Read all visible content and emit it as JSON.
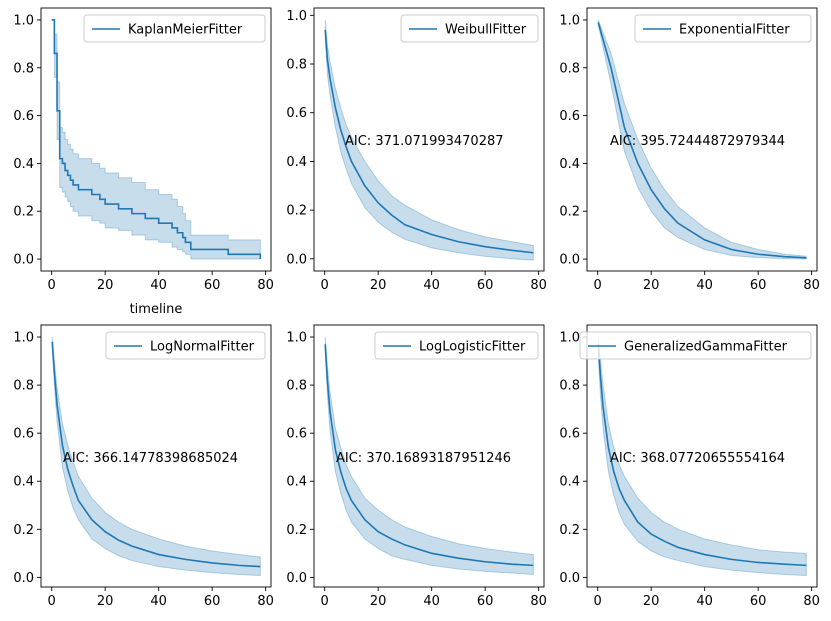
{
  "figure": {
    "line_color": "#1f77b4",
    "band_color": "#1f77b4",
    "band_opacity": 0.25
  },
  "chart_data": [
    {
      "type": "line",
      "model": "kaplan-meier",
      "legend": "KaplanMeierFitter",
      "legend_position": "top-right",
      "annotation": "",
      "xlabel": "timeline",
      "ylabel": "",
      "xlim": [
        -4,
        82
      ],
      "ylim": [
        -0.05,
        1.05
      ],
      "xticks": [
        0,
        20,
        40,
        60,
        80
      ],
      "yticks": [
        0.0,
        0.2,
        0.4,
        0.6,
        0.8,
        1.0
      ],
      "series": [
        {
          "x": [
            0,
            1,
            2,
            3,
            4,
            5,
            6,
            7,
            8,
            10,
            15,
            18,
            20,
            25,
            30,
            35,
            40,
            45,
            47,
            49,
            50,
            52,
            60,
            66,
            78
          ],
          "y": [
            1.0,
            0.86,
            0.62,
            0.42,
            0.4,
            0.37,
            0.35,
            0.33,
            0.31,
            0.29,
            0.27,
            0.25,
            0.23,
            0.21,
            0.19,
            0.17,
            0.15,
            0.13,
            0.11,
            0.09,
            0.07,
            0.04,
            0.04,
            0.02,
            0.0
          ],
          "lower": [
            1.0,
            0.76,
            0.5,
            0.3,
            0.28,
            0.26,
            0.24,
            0.22,
            0.2,
            0.18,
            0.16,
            0.15,
            0.13,
            0.12,
            0.1,
            0.08,
            0.07,
            0.05,
            0.04,
            0.03,
            0.02,
            0.0,
            0.0,
            0.0,
            0.0
          ],
          "upper": [
            1.0,
            0.94,
            0.74,
            0.55,
            0.53,
            0.5,
            0.48,
            0.46,
            0.44,
            0.42,
            0.4,
            0.38,
            0.36,
            0.34,
            0.32,
            0.29,
            0.27,
            0.25,
            0.22,
            0.19,
            0.16,
            0.1,
            0.1,
            0.08,
            0.08
          ]
        }
      ]
    },
    {
      "type": "line",
      "model": "weibull",
      "legend": "WeibullFitter",
      "legend_position": "top-right",
      "annotation": "AIC: 371.071993470287",
      "xlim": [
        -4,
        82
      ],
      "ylim": [
        -0.05,
        1.03
      ],
      "xticks": [
        0,
        20,
        40,
        60,
        80
      ],
      "yticks": [
        0.0,
        0.2,
        0.4,
        0.6,
        0.8,
        1.0
      ],
      "series": [
        {
          "x": [
            0.2,
            1,
            2,
            4,
            6,
            8,
            10,
            15,
            20,
            25,
            30,
            40,
            50,
            60,
            70,
            78
          ],
          "y": [
            0.94,
            0.82,
            0.74,
            0.62,
            0.53,
            0.46,
            0.4,
            0.3,
            0.23,
            0.18,
            0.14,
            0.1,
            0.07,
            0.05,
            0.035,
            0.025
          ],
          "lower": [
            0.9,
            0.76,
            0.67,
            0.54,
            0.44,
            0.37,
            0.31,
            0.21,
            0.15,
            0.11,
            0.08,
            0.045,
            0.025,
            0.01,
            0.0,
            -0.005
          ],
          "upper": [
            0.98,
            0.88,
            0.81,
            0.7,
            0.62,
            0.55,
            0.5,
            0.4,
            0.32,
            0.26,
            0.22,
            0.16,
            0.12,
            0.09,
            0.07,
            0.055
          ]
        }
      ]
    },
    {
      "type": "line",
      "model": "exponential",
      "legend": "ExponentialFitter",
      "legend_position": "top-right",
      "annotation": "AIC: 395.72444872979344",
      "xlim": [
        -4,
        82
      ],
      "ylim": [
        -0.05,
        1.05
      ],
      "xticks": [
        0,
        20,
        40,
        60,
        80
      ],
      "yticks": [
        0.0,
        0.2,
        0.4,
        0.6,
        0.8,
        1.0
      ],
      "series": [
        {
          "x": [
            0.2,
            5,
            10,
            15,
            20,
            25,
            30,
            40,
            50,
            60,
            70,
            78
          ],
          "y": [
            0.99,
            0.8,
            0.55,
            0.4,
            0.29,
            0.21,
            0.15,
            0.08,
            0.04,
            0.02,
            0.01,
            0.005
          ],
          "lower": [
            0.98,
            0.73,
            0.45,
            0.3,
            0.2,
            0.13,
            0.09,
            0.04,
            0.015,
            0.006,
            0.002,
            0.0
          ],
          "upper": [
            1.0,
            0.86,
            0.65,
            0.5,
            0.38,
            0.29,
            0.22,
            0.13,
            0.07,
            0.04,
            0.02,
            0.012
          ]
        }
      ]
    },
    {
      "type": "line",
      "model": "lognormal",
      "legend": "LogNormalFitter",
      "legend_position": "top-right",
      "annotation": "AIC: 366.14778398685024",
      "xlim": [
        -4,
        82
      ],
      "ylim": [
        -0.04,
        1.05
      ],
      "xticks": [
        0,
        20,
        40,
        60,
        80
      ],
      "yticks": [
        0.0,
        0.2,
        0.4,
        0.6,
        0.8,
        1.0
      ],
      "series": [
        {
          "x": [
            0.2,
            1,
            2,
            4,
            6,
            8,
            10,
            15,
            20,
            25,
            30,
            40,
            50,
            60,
            70,
            78
          ],
          "y": [
            0.98,
            0.85,
            0.72,
            0.55,
            0.45,
            0.38,
            0.32,
            0.24,
            0.19,
            0.155,
            0.13,
            0.095,
            0.075,
            0.06,
            0.05,
            0.045
          ],
          "lower": [
            0.96,
            0.8,
            0.65,
            0.46,
            0.36,
            0.29,
            0.24,
            0.16,
            0.12,
            0.09,
            0.07,
            0.045,
            0.03,
            0.02,
            0.012,
            0.008
          ],
          "upper": [
            1.0,
            0.9,
            0.79,
            0.64,
            0.55,
            0.48,
            0.42,
            0.33,
            0.27,
            0.23,
            0.2,
            0.16,
            0.13,
            0.11,
            0.095,
            0.085
          ]
        }
      ]
    },
    {
      "type": "line",
      "model": "loglogistic",
      "legend": "LogLogisticFitter",
      "legend_position": "top-right",
      "annotation": "AIC: 370.16893187951246",
      "xlim": [
        -4,
        82
      ],
      "ylim": [
        -0.04,
        1.05
      ],
      "xticks": [
        0,
        20,
        40,
        60,
        80
      ],
      "yticks": [
        0.0,
        0.2,
        0.4,
        0.6,
        0.8,
        1.0
      ],
      "series": [
        {
          "x": [
            0.2,
            1,
            2,
            4,
            6,
            8,
            10,
            15,
            20,
            25,
            30,
            40,
            50,
            60,
            70,
            78
          ],
          "y": [
            0.97,
            0.82,
            0.69,
            0.53,
            0.44,
            0.37,
            0.32,
            0.24,
            0.19,
            0.16,
            0.135,
            0.1,
            0.08,
            0.065,
            0.055,
            0.05
          ],
          "lower": [
            0.94,
            0.76,
            0.61,
            0.44,
            0.35,
            0.28,
            0.23,
            0.16,
            0.12,
            0.09,
            0.075,
            0.05,
            0.035,
            0.025,
            0.018,
            0.012
          ],
          "upper": [
            1.0,
            0.88,
            0.77,
            0.62,
            0.54,
            0.47,
            0.42,
            0.33,
            0.28,
            0.24,
            0.21,
            0.17,
            0.14,
            0.12,
            0.105,
            0.095
          ]
        }
      ]
    },
    {
      "type": "line",
      "model": "generalized-gamma",
      "legend": "GeneralizedGammaFitter",
      "legend_position": "top-right",
      "annotation": "AIC: 368.07720655554164",
      "xlim": [
        -4,
        82
      ],
      "ylim": [
        -0.04,
        1.05
      ],
      "xticks": [
        0,
        20,
        40,
        60,
        80
      ],
      "yticks": [
        0.0,
        0.2,
        0.4,
        0.6,
        0.8,
        1.0
      ],
      "series": [
        {
          "x": [
            0.2,
            1,
            2,
            4,
            6,
            8,
            10,
            15,
            20,
            25,
            30,
            40,
            50,
            60,
            70,
            78
          ],
          "y": [
            0.97,
            0.84,
            0.71,
            0.54,
            0.44,
            0.37,
            0.32,
            0.23,
            0.18,
            0.15,
            0.125,
            0.095,
            0.075,
            0.062,
            0.055,
            0.05
          ],
          "lower": [
            0.93,
            0.76,
            0.62,
            0.44,
            0.34,
            0.27,
            0.22,
            0.15,
            0.11,
            0.085,
            0.07,
            0.045,
            0.03,
            0.02,
            0.012,
            0.008
          ],
          "upper": [
            1.0,
            0.91,
            0.8,
            0.64,
            0.54,
            0.47,
            0.42,
            0.33,
            0.27,
            0.23,
            0.2,
            0.16,
            0.135,
            0.115,
            0.105,
            0.1
          ]
        }
      ]
    }
  ]
}
